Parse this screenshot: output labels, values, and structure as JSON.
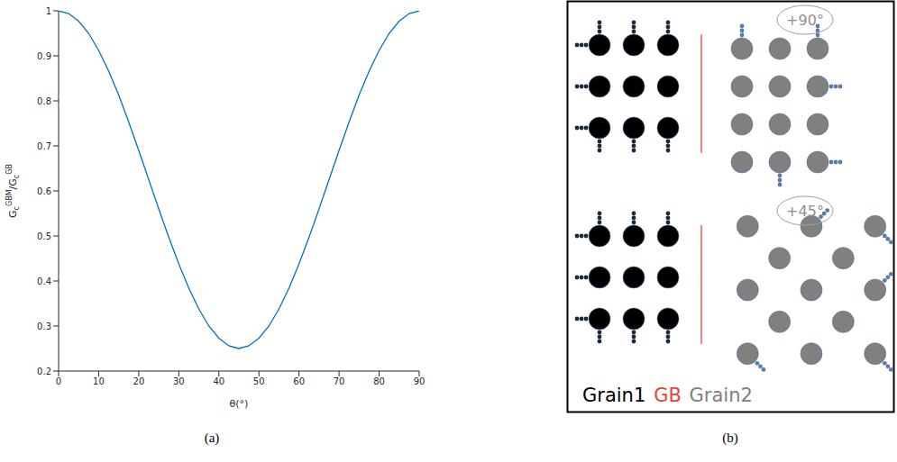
{
  "chart_data": {
    "type": "line",
    "panel_label": "(a)",
    "x_label": "θ(°)",
    "y_label": [
      "G",
      {
        "sub": "c",
        "sup": "GBM"
      },
      "/G",
      {
        "sub": "c",
        "sup": "GB"
      }
    ],
    "x": [
      0,
      2.5,
      5,
      7.5,
      10,
      12.5,
      15,
      17.5,
      20,
      22.5,
      25,
      27.5,
      30,
      32.5,
      35,
      37.5,
      40,
      42.5,
      45,
      47.5,
      50,
      52.5,
      55,
      57.5,
      60,
      62.5,
      65,
      67.5,
      70,
      72.5,
      75,
      77.5,
      80,
      82.5,
      85,
      87.5,
      90
    ],
    "values": [
      1.0,
      0.994,
      0.977,
      0.95,
      0.912,
      0.866,
      0.813,
      0.753,
      0.69,
      0.625,
      0.56,
      0.497,
      0.438,
      0.384,
      0.338,
      0.3,
      0.273,
      0.256,
      0.25,
      0.256,
      0.273,
      0.3,
      0.338,
      0.384,
      0.438,
      0.497,
      0.56,
      0.625,
      0.69,
      0.753,
      0.813,
      0.866,
      0.912,
      0.95,
      0.977,
      0.994,
      1.0
    ],
    "color": "#0072bd",
    "xlim": [
      0,
      90
    ],
    "xticks": [
      0,
      10,
      20,
      30,
      40,
      50,
      60,
      70,
      80,
      90
    ],
    "ylim": [
      0.2,
      1
    ],
    "yticks": [
      0.2,
      0.3,
      0.4,
      0.5,
      0.6,
      0.7,
      0.8,
      0.9,
      1
    ],
    "grid": false
  },
  "diagram": {
    "panel_label": "(b)",
    "rotations": [
      {
        "angle": 90,
        "label": "+90°"
      },
      {
        "angle": 45,
        "label": "+45°"
      }
    ],
    "grain_labels": [
      {
        "text": "Grain1",
        "color": "#000000"
      },
      {
        "text": "GB",
        "color": "#e8413c"
      },
      {
        "text": "Grain2",
        "color": "#808080"
      }
    ]
  }
}
